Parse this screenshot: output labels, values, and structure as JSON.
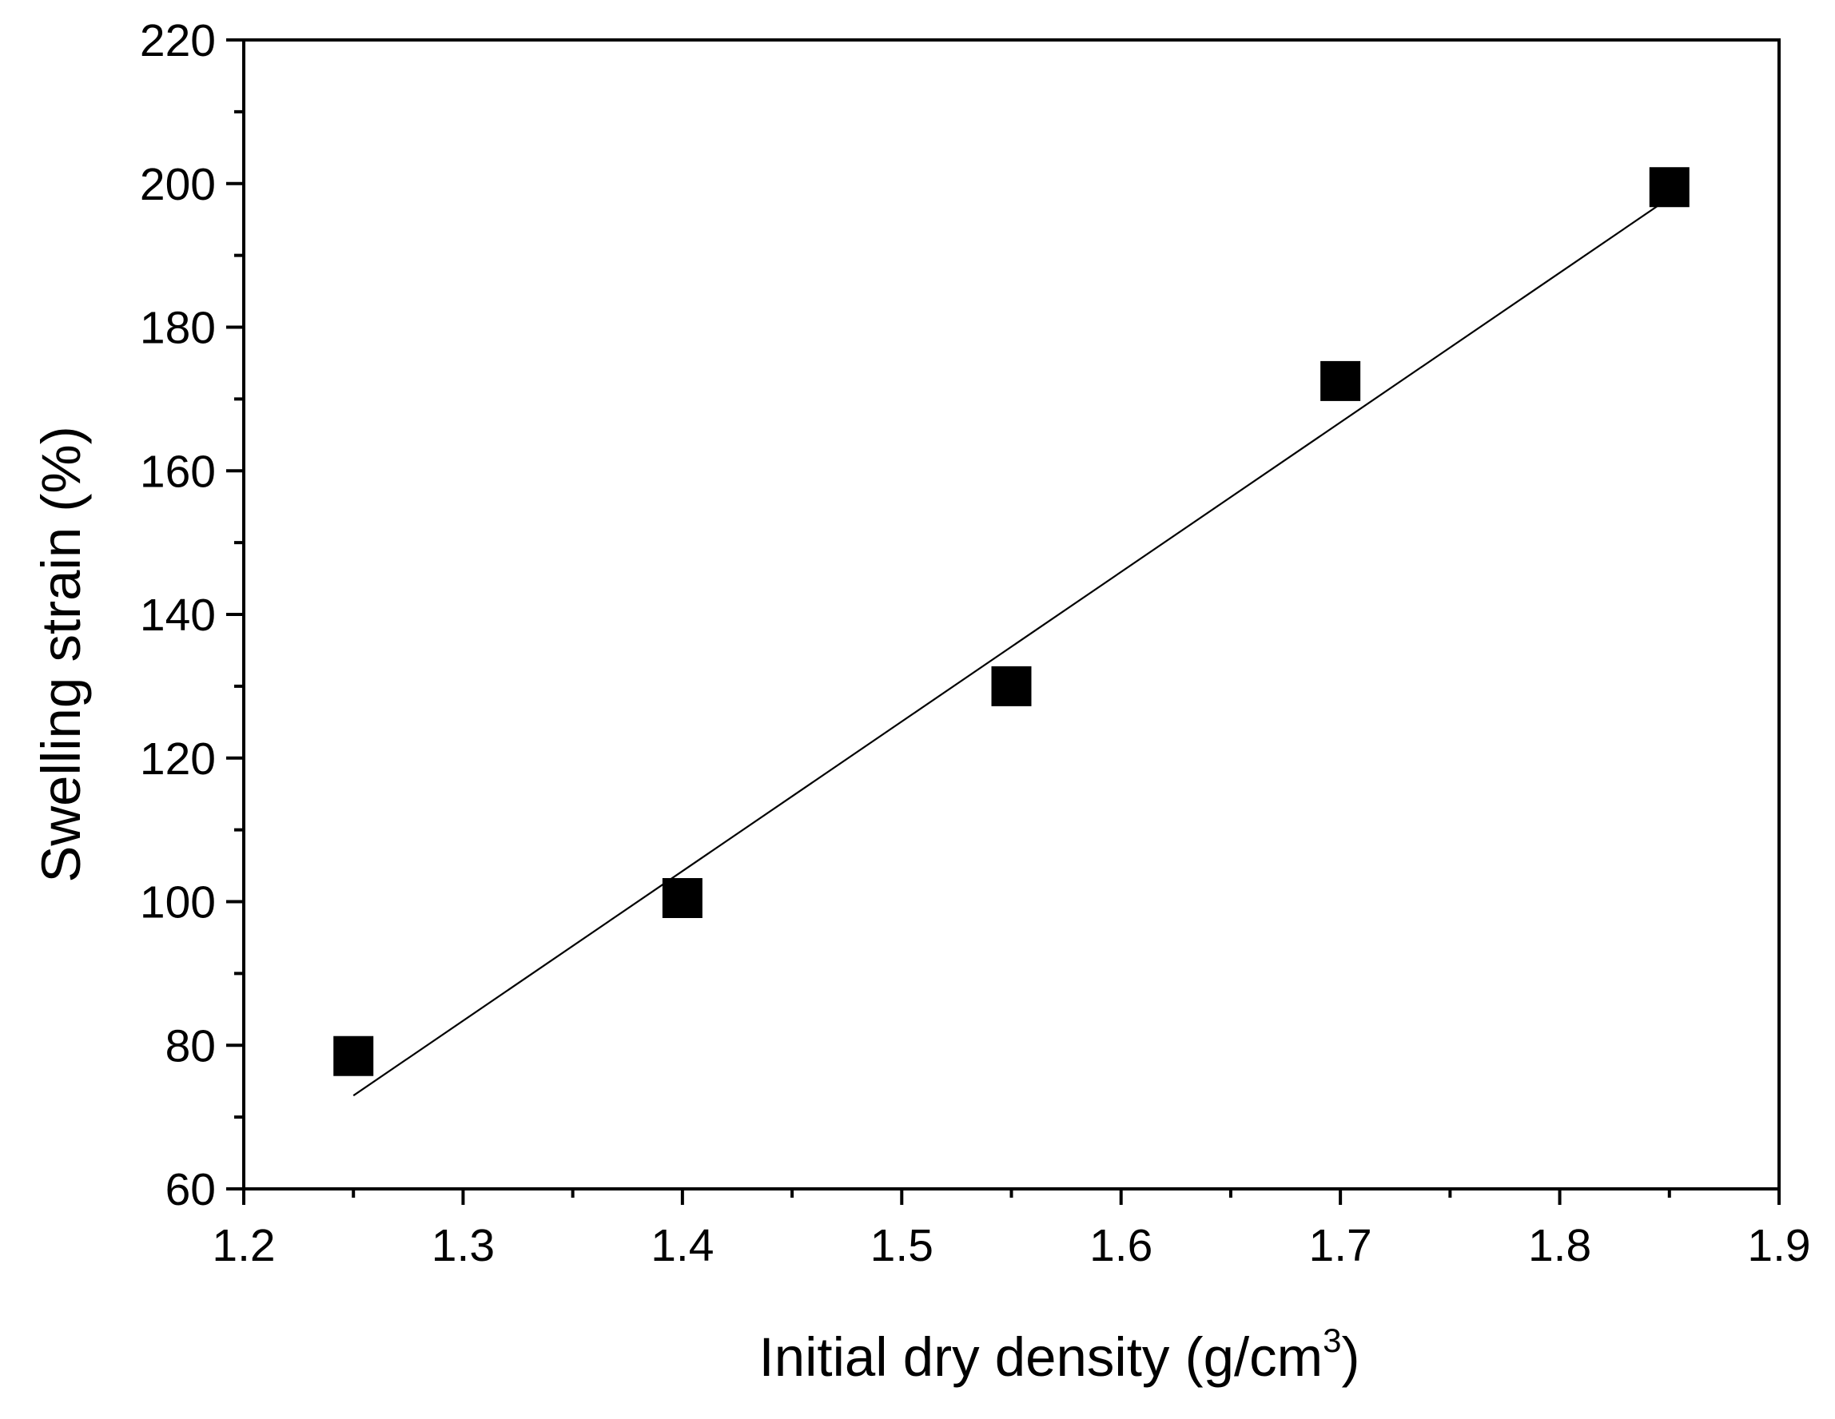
{
  "chart_data": {
    "type": "scatter",
    "xlabel": "Initial dry density (g/cm",
    "xlabel_superscript": "3",
    "xlabel_suffix": ")",
    "ylabel": "Swelling strain (%)",
    "xlim": [
      1.2,
      1.9
    ],
    "ylim": [
      60,
      220
    ],
    "x_ticks": [
      "1.2",
      "1.3",
      "1.4",
      "1.5",
      "1.6",
      "1.7",
      "1.8",
      "1.9"
    ],
    "y_ticks": [
      "60",
      "80",
      "100",
      "120",
      "140",
      "160",
      "180",
      "200",
      "220"
    ],
    "grid": false,
    "legend": "none",
    "marker": "filled-square",
    "marker_color": "#000000",
    "points": [
      {
        "x": 1.25,
        "y": 78.5
      },
      {
        "x": 1.4,
        "y": 100.5
      },
      {
        "x": 1.55,
        "y": 130.0
      },
      {
        "x": 1.7,
        "y": 172.5
      },
      {
        "x": 1.85,
        "y": 199.5
      }
    ],
    "fit_line": {
      "x": [
        1.25,
        1.85
      ],
      "y": [
        73.0,
        198.0
      ],
      "color": "#000000"
    }
  }
}
